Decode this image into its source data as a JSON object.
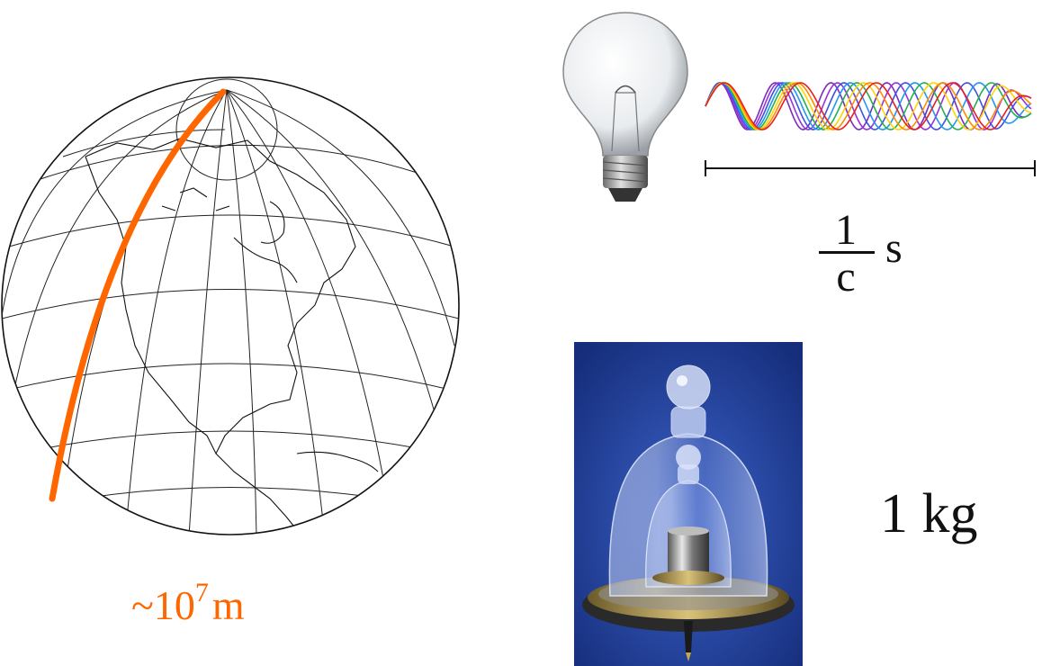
{
  "meter": {
    "prefix": "~10",
    "exponent": "7",
    "unit": "m",
    "color": "#ff6600"
  },
  "second": {
    "numerator": "1",
    "denominator": "c",
    "unit": "s"
  },
  "kilogram": {
    "label": "1 kg",
    "photo_background": "#1f3d9a"
  },
  "wave_colors": [
    "#7b2cbf",
    "#9b30d9",
    "#3f51e0",
    "#2196f3",
    "#22b14c",
    "#ffd400",
    "#ff8c00",
    "#e62020"
  ]
}
